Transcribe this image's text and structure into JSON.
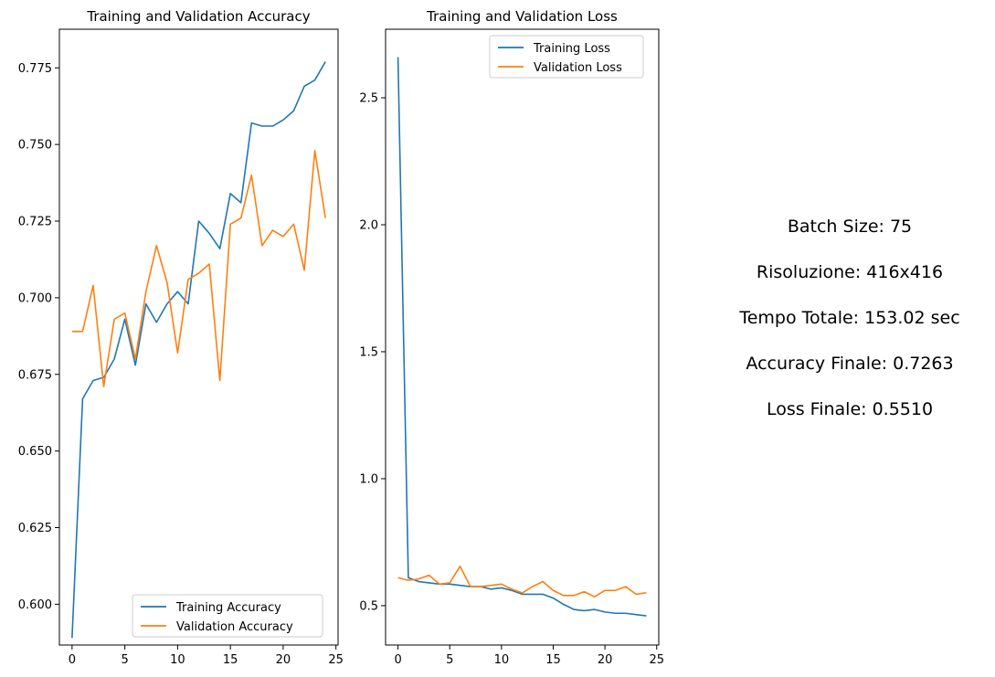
{
  "colors": {
    "training": "#1f77b4",
    "validation": "#ff7f0e"
  },
  "chart_data": [
    {
      "type": "line",
      "title": "Training and Validation Accuracy",
      "xlabel": "",
      "ylabel": "",
      "xlim": [
        -1.2,
        25.2
      ],
      "ylim": [
        0.5867,
        0.7876
      ],
      "xticks": [
        0,
        5,
        10,
        15,
        20,
        25
      ],
      "yticks": [
        0.6,
        0.625,
        0.65,
        0.675,
        0.7,
        0.725,
        0.75,
        0.775
      ],
      "ytick_labels": [
        "0.600",
        "0.625",
        "0.650",
        "0.675",
        "0.700",
        "0.725",
        "0.750",
        "0.775"
      ],
      "xtick_labels": [
        "0",
        "5",
        "10",
        "15",
        "20",
        "25"
      ],
      "legend": "lower-right",
      "grid": false,
      "x": [
        0,
        1,
        2,
        3,
        4,
        5,
        6,
        7,
        8,
        9,
        10,
        11,
        12,
        13,
        14,
        15,
        16,
        17,
        18,
        19,
        20,
        21,
        22,
        23,
        24
      ],
      "series": [
        {
          "name": "Training Accuracy",
          "color": "training",
          "values": [
            0.589,
            0.667,
            0.673,
            0.674,
            0.68,
            0.693,
            0.678,
            0.698,
            0.692,
            0.698,
            0.702,
            0.698,
            0.725,
            0.721,
            0.716,
            0.734,
            0.731,
            0.757,
            0.756,
            0.756,
            0.758,
            0.761,
            0.769,
            0.771,
            0.777
          ]
        },
        {
          "name": "Validation Accuracy",
          "color": "validation",
          "values": [
            0.689,
            0.689,
            0.704,
            0.671,
            0.693,
            0.695,
            0.68,
            0.702,
            0.717,
            0.705,
            0.682,
            0.706,
            0.708,
            0.711,
            0.673,
            0.724,
            0.726,
            0.74,
            0.717,
            0.722,
            0.72,
            0.724,
            0.709,
            0.748,
            0.726
          ]
        }
      ]
    },
    {
      "type": "line",
      "title": "Training and Validation Loss",
      "xlabel": "",
      "ylabel": "",
      "xlim": [
        -1.2,
        25.2
      ],
      "ylim": [
        0.345,
        2.77
      ],
      "xticks": [
        0,
        5,
        10,
        15,
        20,
        25
      ],
      "yticks": [
        0.5,
        1.0,
        1.5,
        2.0,
        2.5
      ],
      "ytick_labels": [
        "0.5",
        "1.0",
        "1.5",
        "2.0",
        "2.5"
      ],
      "xtick_labels": [
        "0",
        "5",
        "10",
        "15",
        "20",
        "25"
      ],
      "legend": "top-right",
      "grid": false,
      "x": [
        0,
        1,
        2,
        3,
        4,
        5,
        6,
        7,
        8,
        9,
        10,
        11,
        12,
        13,
        14,
        15,
        16,
        17,
        18,
        19,
        20,
        21,
        22,
        23,
        24
      ],
      "series": [
        {
          "name": "Training Loss",
          "color": "training",
          "values": [
            2.66,
            0.61,
            0.595,
            0.59,
            0.585,
            0.585,
            0.58,
            0.575,
            0.575,
            0.565,
            0.57,
            0.56,
            0.545,
            0.545,
            0.545,
            0.53,
            0.505,
            0.485,
            0.48,
            0.485,
            0.475,
            0.47,
            0.47,
            0.465,
            0.46
          ]
        },
        {
          "name": "Validation Loss",
          "color": "validation",
          "values": [
            0.61,
            0.6,
            0.605,
            0.62,
            0.585,
            0.59,
            0.655,
            0.575,
            0.575,
            0.58,
            0.585,
            0.565,
            0.55,
            0.575,
            0.595,
            0.56,
            0.54,
            0.54,
            0.555,
            0.535,
            0.56,
            0.56,
            0.575,
            0.545,
            0.551
          ]
        }
      ]
    }
  ],
  "info": {
    "batch_size": "Batch Size: 75",
    "resolution": "Risoluzione: 416x416",
    "total_time": "Tempo Totale: 153.02 sec",
    "final_accuracy": "Accuracy Finale: 0.7263",
    "final_loss": "Loss Finale: 0.5510"
  }
}
